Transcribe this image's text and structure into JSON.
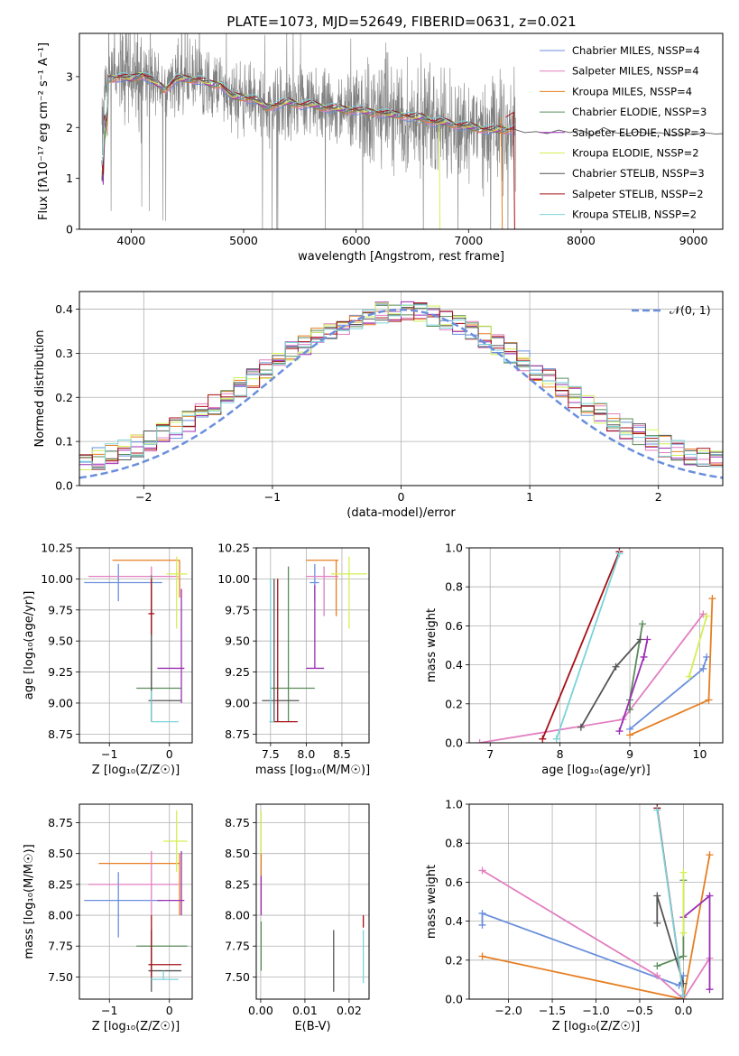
{
  "chart_data": [
    {
      "id": "spectrum",
      "type": "line",
      "title": "PLATE=1073, MJD=52649, FIBERID=0631, z=0.021",
      "xlabel": "wavelength [Angstrom, rest frame]",
      "ylabel": "Flux [fλ10⁻¹⁷ erg cm⁻² s⁻¹ A⁻¹]",
      "xlim": [
        3540,
        9260
      ],
      "ylim": [
        0,
        3.85
      ],
      "xticks": [
        "4000",
        "5000",
        "6000",
        "7000",
        "8000",
        "9000"
      ],
      "yticks": [
        "0",
        "1",
        "2",
        "3"
      ],
      "grid": false,
      "legend_placement": "top-right",
      "series": [
        {
          "name": "Chabrier MILES, NSSP=4",
          "color": "#6a8fdc"
        },
        {
          "name": "Salpeter MILES, NSSP=4",
          "color": "#e27fc0"
        },
        {
          "name": "Kroupa MILES, NSSP=4",
          "color": "#e67e22"
        },
        {
          "name": "Chabrier ELODIE, NSSP=3",
          "color": "#5b8c5a"
        },
        {
          "name": "Salpeter ELODIE, NSSP=3",
          "color": "#9b2fb5"
        },
        {
          "name": "Kroupa ELODIE, NSSP=2",
          "color": "#d4ef55"
        },
        {
          "name": "Chabrier STELIB, NSSP=3",
          "color": "#555555"
        },
        {
          "name": "Salpeter STELIB, NSSP=2",
          "color": "#a50f15"
        },
        {
          "name": "Kroupa STELIB, NSSP=2",
          "color": "#7ad3d9"
        }
      ],
      "data_color": "#808080",
      "continuum": [
        [
          3760,
          2.7
        ],
        [
          3800,
          2.95
        ],
        [
          3900,
          3.0
        ],
        [
          4000,
          2.95
        ],
        [
          4100,
          3.05
        ],
        [
          4200,
          2.9
        ],
        [
          4300,
          2.75
        ],
        [
          4400,
          2.95
        ],
        [
          4500,
          2.95
        ],
        [
          4600,
          2.95
        ],
        [
          4700,
          2.85
        ],
        [
          4800,
          2.85
        ],
        [
          4900,
          2.6
        ],
        [
          5000,
          2.6
        ],
        [
          5100,
          2.55
        ],
        [
          5200,
          2.4
        ],
        [
          5300,
          2.45
        ],
        [
          5400,
          2.5
        ],
        [
          5500,
          2.45
        ],
        [
          5600,
          2.45
        ],
        [
          5700,
          2.4
        ],
        [
          5800,
          2.38
        ],
        [
          5900,
          2.35
        ],
        [
          6000,
          2.35
        ],
        [
          6100,
          2.3
        ],
        [
          6200,
          2.3
        ],
        [
          6300,
          2.25
        ],
        [
          6400,
          2.25
        ],
        [
          6500,
          2.2
        ],
        [
          6600,
          2.2
        ],
        [
          6700,
          2.1
        ],
        [
          6800,
          2.1
        ],
        [
          6900,
          2.05
        ],
        [
          7000,
          2.02
        ],
        [
          7100,
          1.98
        ],
        [
          7200,
          1.95
        ],
        [
          7300,
          1.95
        ],
        [
          7400,
          1.97
        ]
      ],
      "model_tail": [
        [
          7400,
          1.97
        ],
        [
          7500,
          1.9
        ],
        [
          7600,
          1.92
        ],
        [
          7700,
          1.88
        ],
        [
          7800,
          1.95
        ],
        [
          7900,
          1.9
        ],
        [
          8000,
          1.95
        ],
        [
          8100,
          1.85
        ],
        [
          8200,
          2.0
        ],
        [
          8300,
          1.9
        ],
        [
          8400,
          1.87
        ],
        [
          8500,
          1.92
        ],
        [
          8600,
          1.88
        ],
        [
          8700,
          1.9
        ],
        [
          8800,
          1.85
        ],
        [
          8900,
          1.88
        ],
        [
          9000,
          1.86
        ],
        [
          9100,
          1.9
        ],
        [
          9200,
          1.87
        ],
        [
          9260,
          1.88
        ]
      ]
    },
    {
      "id": "residuals",
      "type": "line",
      "xlabel": "(data-model)/error",
      "ylabel": "Normed distribution",
      "xlim": [
        -2.5,
        2.5
      ],
      "ylim": [
        0,
        0.44
      ],
      "xticks": [
        "−2",
        "−1",
        "0",
        "1",
        "2"
      ],
      "yticks": [
        "0.0",
        "0.1",
        "0.2",
        "0.3",
        "0.4"
      ],
      "grid": true,
      "legend_placement": "top-right",
      "reference": {
        "name": "𝒩(0, 1)",
        "mean": 0,
        "sigma": 1,
        "color": "#6a8fdc"
      },
      "bins": 50
    },
    {
      "id": "age-vs-z",
      "type": "scatter",
      "xlabel": "Z [log₁₀(Z/Z☉)]",
      "ylabel": "age  [log₁₀(age/yr)]",
      "xlim": [
        -1.5,
        0.38
      ],
      "ylim": [
        8.68,
        10.25
      ],
      "xticks": [
        "−1",
        "0"
      ],
      "yticks": [
        "8.75",
        "9.00",
        "9.25",
        "9.50",
        "9.75",
        "10.00",
        "10.25"
      ],
      "grid": true,
      "points": [
        {
          "c": "#6a8fdc",
          "x": -0.85,
          "y": 9.97,
          "xl": -1.42,
          "xh": -0.12,
          "yl": 9.82,
          "yh": 10.12
        },
        {
          "c": "#e67e22",
          "x": 0.17,
          "y": 10.15,
          "xl": -0.95,
          "xh": 0.17,
          "yl": 9.85,
          "yh": 10.15
        },
        {
          "c": "#e27fc0",
          "x": -0.3,
          "y": 10.02,
          "xl": -1.35,
          "xh": 0.15,
          "yl": 9.7,
          "yh": 10.1
        },
        {
          "c": "#d4ef55",
          "x": 0.12,
          "y": 10.04,
          "xl": -0.05,
          "xh": 0.3,
          "yl": 9.6,
          "yh": 10.18
        },
        {
          "c": "#9b2fb5",
          "x": 0.2,
          "y": 9.28,
          "xl": -0.2,
          "xh": 0.25,
          "yl": 9.0,
          "yh": 9.92
        },
        {
          "c": "#5b8c5a",
          "x": -0.3,
          "y": 9.12,
          "xl": -0.55,
          "xh": 0.2,
          "yl": 8.85,
          "yh": 10.03
        },
        {
          "c": "#555555",
          "x": -0.3,
          "y": 9.02,
          "xl": -0.35,
          "xh": 0.2,
          "yl": 8.85,
          "yh": 9.95
        },
        {
          "c": "#a50f15",
          "x": -0.3,
          "y": 9.72,
          "xl": -0.35,
          "xh": -0.25,
          "yl": 9.55,
          "yh": 10.0
        },
        {
          "c": "#7ad3d9",
          "x": -0.3,
          "y": 8.85,
          "xl": -0.3,
          "xh": 0.15,
          "yl": 8.85,
          "yh": 9.1
        }
      ]
    },
    {
      "id": "age-vs-mass",
      "type": "scatter",
      "xlabel": "mass [log₁₀(M/M☉)]",
      "ylabel": "",
      "xlim": [
        7.3,
        8.88
      ],
      "ylim": [
        8.68,
        10.25
      ],
      "xticks": [
        "7.5",
        "8.0",
        "8.5"
      ],
      "yticks": [
        "8.75",
        "9.00",
        "9.25",
        "9.50",
        "9.75",
        "10.00",
        "10.25"
      ],
      "grid": true,
      "points": [
        {
          "c": "#6a8fdc",
          "x": 8.12,
          "y": 9.97,
          "xl": 8.05,
          "xh": 8.18,
          "yl": 9.82,
          "yh": 10.12
        },
        {
          "c": "#e67e22",
          "x": 8.42,
          "y": 10.15,
          "xl": 8.0,
          "xh": 8.45,
          "yl": 9.7,
          "yh": 10.15
        },
        {
          "c": "#e27fc0",
          "x": 8.25,
          "y": 10.02,
          "xl": 8.0,
          "xh": 8.45,
          "yl": 9.7,
          "yh": 10.1
        },
        {
          "c": "#d4ef55",
          "x": 8.6,
          "y": 10.04,
          "xl": 8.35,
          "xh": 8.85,
          "yl": 9.6,
          "yh": 10.18
        },
        {
          "c": "#9b2fb5",
          "x": 8.12,
          "y": 9.28,
          "xl": 8.0,
          "xh": 8.25,
          "yl": 9.28,
          "yh": 9.95
        },
        {
          "c": "#5b8c5a",
          "x": 7.75,
          "y": 9.12,
          "xl": 7.5,
          "xh": 8.12,
          "yl": 8.85,
          "yh": 10.1
        },
        {
          "c": "#555555",
          "x": 7.55,
          "y": 9.02,
          "xl": 7.38,
          "xh": 7.9,
          "yl": 8.85,
          "yh": 10.0
        },
        {
          "c": "#a50f15",
          "x": 7.6,
          "y": 8.85,
          "xl": 7.5,
          "xh": 7.88,
          "yl": 8.85,
          "yh": 10.0
        },
        {
          "c": "#7ad3d9",
          "x": 7.5,
          "y": 8.85,
          "xl": 7.48,
          "xh": 7.55,
          "yl": 8.85,
          "yh": 10.0
        }
      ]
    },
    {
      "id": "weight-vs-age",
      "type": "line",
      "xlabel": "age  [log₁₀(age/yr)]",
      "ylabel": "mass weight",
      "xlim": [
        6.7,
        10.33
      ],
      "ylim": [
        0,
        1.0
      ],
      "xticks": [
        "7",
        "8",
        "9",
        "10"
      ],
      "yticks": [
        "0.0",
        "0.2",
        "0.4",
        "0.6",
        "0.8",
        "1.0"
      ],
      "grid": true,
      "series": [
        {
          "c": "#6a8fdc",
          "pts": [
            [
              9.0,
              0.07
            ],
            [
              10.05,
              0.38
            ],
            [
              10.1,
              0.44
            ]
          ]
        },
        {
          "c": "#e27fc0",
          "pts": [
            [
              6.85,
              0.0
            ],
            [
              8.9,
              0.12
            ],
            [
              10.05,
              0.66
            ]
          ]
        },
        {
          "c": "#e67e22",
          "pts": [
            [
              9.0,
              0.04
            ],
            [
              10.13,
              0.22
            ],
            [
              10.18,
              0.74
            ]
          ]
        },
        {
          "c": "#5b8c5a",
          "pts": [
            [
              9.0,
              0.17
            ],
            [
              9.0,
              0.22
            ],
            [
              9.18,
              0.61
            ]
          ]
        },
        {
          "c": "#9b2fb5",
          "pts": [
            [
              8.85,
              0.06
            ],
            [
              9.2,
              0.44
            ],
            [
              9.25,
              0.53
            ]
          ]
        },
        {
          "c": "#d4ef55",
          "pts": [
            [
              9.85,
              0.34
            ],
            [
              10.1,
              0.65
            ]
          ]
        },
        {
          "c": "#555555",
          "pts": [
            [
              8.3,
              0.08
            ],
            [
              8.8,
              0.39
            ],
            [
              9.15,
              0.53
            ]
          ]
        },
        {
          "c": "#a50f15",
          "pts": [
            [
              7.75,
              0.02
            ],
            [
              8.85,
              0.98
            ]
          ]
        },
        {
          "c": "#7ad3d9",
          "pts": [
            [
              7.95,
              0.02
            ],
            [
              8.85,
              0.97
            ]
          ]
        }
      ]
    },
    {
      "id": "mass-vs-z",
      "type": "scatter",
      "xlabel": "Z [log₁₀(Z/Z☉)]",
      "ylabel": "mass [log₁₀(M/M☉)]",
      "xlim": [
        -1.5,
        0.38
      ],
      "ylim": [
        7.32,
        8.9
      ],
      "xticks": [
        "−1",
        "0"
      ],
      "yticks": [
        "7.50",
        "7.75",
        "8.00",
        "8.25",
        "8.50",
        "8.75"
      ],
      "grid": true,
      "points": [
        {
          "c": "#6a8fdc",
          "x": -0.85,
          "y": 8.12,
          "xl": -1.42,
          "xh": -0.12,
          "yl": 7.82,
          "yh": 8.35
        },
        {
          "c": "#e67e22",
          "x": 0.17,
          "y": 8.42,
          "xl": -1.18,
          "xh": 0.17,
          "yl": 8.0,
          "yh": 8.5
        },
        {
          "c": "#e27fc0",
          "x": -0.3,
          "y": 8.25,
          "xl": -1.35,
          "xh": 0.15,
          "yl": 8.0,
          "yh": 8.52
        },
        {
          "c": "#d4ef55",
          "x": 0.12,
          "y": 8.6,
          "xl": -0.1,
          "xh": 0.3,
          "yl": 8.35,
          "yh": 8.85
        },
        {
          "c": "#9b2fb5",
          "x": 0.2,
          "y": 8.12,
          "xl": -0.2,
          "xh": 0.25,
          "yl": 8.0,
          "yh": 8.52
        },
        {
          "c": "#5b8c5a",
          "x": -0.3,
          "y": 7.75,
          "xl": -0.55,
          "xh": 0.3,
          "yl": 7.5,
          "yh": 7.88
        },
        {
          "c": "#555555",
          "x": -0.3,
          "y": 7.55,
          "xl": -0.35,
          "xh": 0.2,
          "yl": 7.38,
          "yh": 7.88
        },
        {
          "c": "#a50f15",
          "x": -0.3,
          "y": 7.6,
          "xl": -0.35,
          "xh": 0.2,
          "yl": 7.5,
          "yh": 8.0
        },
        {
          "c": "#7ad3d9",
          "x": -0.1,
          "y": 7.48,
          "xl": -0.3,
          "xh": 0.15,
          "yl": 7.48,
          "yh": 7.55
        }
      ]
    },
    {
      "id": "mass-vs-ebv",
      "type": "scatter",
      "xlabel": "E(B-V)",
      "ylabel": "",
      "xlim": [
        -0.001,
        0.0245
      ],
      "ylim": [
        7.32,
        8.9
      ],
      "xticks": [
        "0.00",
        "0.01",
        "0.02"
      ],
      "yticks": [
        "7.50",
        "7.75",
        "8.00",
        "8.25",
        "8.50",
        "8.75"
      ],
      "grid": true,
      "points": [
        {
          "c": "#d4ef55",
          "x": 0.0001,
          "y": 8.6,
          "xl": 0.0001,
          "xh": 0.0001,
          "yl": 8.4,
          "yh": 8.85
        },
        {
          "c": "#e67e22",
          "x": 0.0001,
          "y": 8.42,
          "xl": 0.0001,
          "xh": 0.0001,
          "yl": 8.0,
          "yh": 8.5
        },
        {
          "c": "#9b2fb5",
          "x": 0.0001,
          "y": 8.12,
          "xl": 0.0001,
          "xh": 0.0001,
          "yl": 8.0,
          "yh": 8.32
        },
        {
          "c": "#5b8c5a",
          "x": 0.0001,
          "y": 7.75,
          "xl": 0.0001,
          "xh": 0.0001,
          "yl": 7.55,
          "yh": 7.95
        },
        {
          "c": "#555555",
          "x": 0.0165,
          "y": 7.55,
          "xl": 0.0165,
          "xh": 0.0165,
          "yl": 7.38,
          "yh": 7.88
        },
        {
          "c": "#a50f15",
          "x": 0.0232,
          "y": 7.6,
          "xl": 0.0232,
          "xh": 0.0232,
          "yl": 7.9,
          "yh": 8.0
        },
        {
          "c": "#7ad3d9",
          "x": 0.0232,
          "y": 7.48,
          "xl": 0.0232,
          "xh": 0.0232,
          "yl": 7.45,
          "yh": 7.88
        }
      ]
    },
    {
      "id": "weight-vs-z",
      "type": "line",
      "xlabel": "Z [log₁₀(Z/Z☉)]",
      "ylabel": "mass weight",
      "xlim": [
        -2.45,
        0.45
      ],
      "ylim": [
        0,
        1.0
      ],
      "xticks": [
        "−2.0",
        "−1.5",
        "−1.0",
        "−0.5",
        "0.0"
      ],
      "yticks": [
        "0.0",
        "0.2",
        "0.4",
        "0.6",
        "0.8",
        "1.0"
      ],
      "grid": true,
      "series": [
        {
          "c": "#6a8fdc",
          "pts": [
            [
              -2.3,
              0.38
            ],
            [
              -2.3,
              0.44
            ],
            [
              -0.05,
              0.07
            ],
            [
              0.0,
              0.12
            ]
          ]
        },
        {
          "c": "#e27fc0",
          "pts": [
            [
              -2.3,
              0.66
            ],
            [
              -0.3,
              0.12
            ],
            [
              0.0,
              0.0
            ],
            [
              0.3,
              0.21
            ]
          ]
        },
        {
          "c": "#e67e22",
          "pts": [
            [
              -2.3,
              0.22
            ],
            [
              0.0,
              0.0
            ],
            [
              0.3,
              0.74
            ]
          ]
        },
        {
          "c": "#5b8c5a",
          "pts": [
            [
              -0.3,
              0.17
            ],
            [
              0.0,
              0.22
            ],
            [
              0.0,
              0.61
            ]
          ]
        },
        {
          "c": "#9b2fb5",
          "pts": [
            [
              0.0,
              0.42
            ],
            [
              0.3,
              0.53
            ],
            [
              0.3,
              0.05
            ]
          ]
        },
        {
          "c": "#d4ef55",
          "pts": [
            [
              0.0,
              0.34
            ],
            [
              0.0,
              0.65
            ]
          ]
        },
        {
          "c": "#555555",
          "pts": [
            [
              -0.3,
              0.39
            ],
            [
              -0.3,
              0.53
            ],
            [
              0.0,
              0.08
            ]
          ]
        },
        {
          "c": "#a50f15",
          "pts": [
            [
              -0.3,
              0.98
            ],
            [
              0.0,
              0.02
            ]
          ]
        },
        {
          "c": "#7ad3d9",
          "pts": [
            [
              -0.3,
              0.97
            ],
            [
              0.0,
              0.02
            ]
          ]
        }
      ]
    }
  ]
}
